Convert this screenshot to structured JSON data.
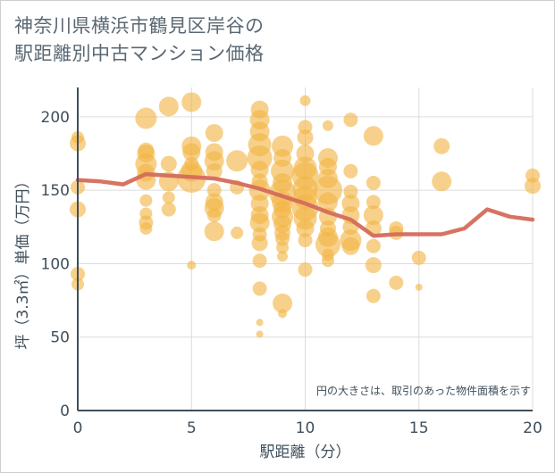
{
  "title": {
    "line1": "神奈川県横浜市鶴見区岸谷の",
    "line2": "駅距離別中古マンション価格"
  },
  "chart_data": {
    "type": "scatter",
    "xlabel": "駅距離（分）",
    "ylabel": "坪（3.3㎡）単価（万円）",
    "xlim": [
      0,
      20
    ],
    "ylim": [
      0,
      220
    ],
    "xticks": [
      0,
      5,
      10,
      15,
      20
    ],
    "yticks": [
      0,
      50,
      100,
      150,
      200
    ],
    "grid": true,
    "note": "円の大きさは、取引のあった物件面積を示す",
    "colors": {
      "bubble": "#f2b544",
      "line": "#d46b5a",
      "grid": "#dcdcdc",
      "axis": "#3f4f5b"
    },
    "line_series": {
      "x": [
        0,
        1,
        2,
        3,
        4,
        5,
        6,
        7,
        8,
        9,
        10,
        11,
        12,
        13,
        14,
        15,
        16,
        17,
        18,
        19,
        20
      ],
      "y": [
        157,
        156,
        154,
        161,
        160,
        159,
        158,
        155,
        151,
        146,
        141,
        135,
        130,
        119,
        120,
        120,
        120,
        124,
        137,
        132,
        130
      ]
    },
    "bubbles": [
      {
        "x": 0,
        "y": 186,
        "s": 7
      },
      {
        "x": 0,
        "y": 182,
        "s": 9
      },
      {
        "x": 0,
        "y": 152,
        "s": 8
      },
      {
        "x": 0,
        "y": 137,
        "s": 9
      },
      {
        "x": 0,
        "y": 93,
        "s": 8
      },
      {
        "x": 0,
        "y": 86,
        "s": 7
      },
      {
        "x": 3,
        "y": 199,
        "s": 12
      },
      {
        "x": 3,
        "y": 177,
        "s": 9
      },
      {
        "x": 3,
        "y": 175,
        "s": 10
      },
      {
        "x": 3,
        "y": 168,
        "s": 12
      },
      {
        "x": 3,
        "y": 162,
        "s": 10
      },
      {
        "x": 3,
        "y": 157,
        "s": 11
      },
      {
        "x": 3,
        "y": 143,
        "s": 7
      },
      {
        "x": 3,
        "y": 134,
        "s": 7
      },
      {
        "x": 3,
        "y": 128,
        "s": 8
      },
      {
        "x": 3,
        "y": 124,
        "s": 7
      },
      {
        "x": 4,
        "y": 207,
        "s": 11
      },
      {
        "x": 4,
        "y": 168,
        "s": 9
      },
      {
        "x": 4,
        "y": 156,
        "s": 11
      },
      {
        "x": 4,
        "y": 145,
        "s": 7
      },
      {
        "x": 4,
        "y": 137,
        "s": 8
      },
      {
        "x": 5,
        "y": 210,
        "s": 11
      },
      {
        "x": 5,
        "y": 180,
        "s": 11
      },
      {
        "x": 5,
        "y": 176,
        "s": 10
      },
      {
        "x": 5,
        "y": 168,
        "s": 8
      },
      {
        "x": 5,
        "y": 163,
        "s": 12
      },
      {
        "x": 5,
        "y": 158,
        "s": 16
      },
      {
        "x": 5,
        "y": 99,
        "s": 5
      },
      {
        "x": 6,
        "y": 189,
        "s": 10
      },
      {
        "x": 6,
        "y": 176,
        "s": 10
      },
      {
        "x": 6,
        "y": 170,
        "s": 11
      },
      {
        "x": 6,
        "y": 163,
        "s": 9
      },
      {
        "x": 6,
        "y": 150,
        "s": 8
      },
      {
        "x": 6,
        "y": 142,
        "s": 10
      },
      {
        "x": 6,
        "y": 138,
        "s": 11
      },
      {
        "x": 6,
        "y": 133,
        "s": 8
      },
      {
        "x": 6,
        "y": 122,
        "s": 11
      },
      {
        "x": 7,
        "y": 170,
        "s": 12
      },
      {
        "x": 7,
        "y": 152,
        "s": 8
      },
      {
        "x": 7,
        "y": 121,
        "s": 7
      },
      {
        "x": 8,
        "y": 205,
        "s": 10
      },
      {
        "x": 8,
        "y": 198,
        "s": 11
      },
      {
        "x": 8,
        "y": 190,
        "s": 11
      },
      {
        "x": 8,
        "y": 181,
        "s": 13
      },
      {
        "x": 8,
        "y": 172,
        "s": 14
      },
      {
        "x": 8,
        "y": 164,
        "s": 10
      },
      {
        "x": 8,
        "y": 156,
        "s": 9
      },
      {
        "x": 8,
        "y": 150,
        "s": 12
      },
      {
        "x": 8,
        "y": 141,
        "s": 10
      },
      {
        "x": 8,
        "y": 133,
        "s": 10
      },
      {
        "x": 8,
        "y": 128,
        "s": 11
      },
      {
        "x": 8,
        "y": 120,
        "s": 8
      },
      {
        "x": 8,
        "y": 114,
        "s": 9
      },
      {
        "x": 8,
        "y": 102,
        "s": 8
      },
      {
        "x": 8,
        "y": 83,
        "s": 8
      },
      {
        "x": 8,
        "y": 60,
        "s": 4
      },
      {
        "x": 8,
        "y": 52,
        "s": 4
      },
      {
        "x": 9,
        "y": 180,
        "s": 12
      },
      {
        "x": 9,
        "y": 172,
        "s": 10
      },
      {
        "x": 9,
        "y": 163,
        "s": 13
      },
      {
        "x": 9,
        "y": 155,
        "s": 11
      },
      {
        "x": 9,
        "y": 148,
        "s": 15
      },
      {
        "x": 9,
        "y": 142,
        "s": 12
      },
      {
        "x": 9,
        "y": 137,
        "s": 10
      },
      {
        "x": 9,
        "y": 132,
        "s": 12
      },
      {
        "x": 9,
        "y": 127,
        "s": 10
      },
      {
        "x": 9,
        "y": 121,
        "s": 9
      },
      {
        "x": 9,
        "y": 117,
        "s": 8
      },
      {
        "x": 9,
        "y": 111,
        "s": 7
      },
      {
        "x": 9,
        "y": 105,
        "s": 6
      },
      {
        "x": 9,
        "y": 73,
        "s": 11
      },
      {
        "x": 9,
        "y": 66,
        "s": 5
      },
      {
        "x": 10,
        "y": 211,
        "s": 6
      },
      {
        "x": 10,
        "y": 193,
        "s": 8
      },
      {
        "x": 10,
        "y": 186,
        "s": 9
      },
      {
        "x": 10,
        "y": 175,
        "s": 10
      },
      {
        "x": 10,
        "y": 165,
        "s": 13
      },
      {
        "x": 10,
        "y": 160,
        "s": 15
      },
      {
        "x": 10,
        "y": 151,
        "s": 14
      },
      {
        "x": 10,
        "y": 145,
        "s": 13
      },
      {
        "x": 10,
        "y": 138,
        "s": 15
      },
      {
        "x": 10,
        "y": 131,
        "s": 13
      },
      {
        "x": 10,
        "y": 124,
        "s": 10
      },
      {
        "x": 10,
        "y": 116,
        "s": 8
      },
      {
        "x": 10,
        "y": 96,
        "s": 8
      },
      {
        "x": 11,
        "y": 194,
        "s": 6
      },
      {
        "x": 11,
        "y": 172,
        "s": 11
      },
      {
        "x": 11,
        "y": 166,
        "s": 10
      },
      {
        "x": 11,
        "y": 158,
        "s": 11
      },
      {
        "x": 11,
        "y": 150,
        "s": 16
      },
      {
        "x": 11,
        "y": 142,
        "s": 11
      },
      {
        "x": 11,
        "y": 132,
        "s": 10
      },
      {
        "x": 11,
        "y": 124,
        "s": 9
      },
      {
        "x": 11,
        "y": 118,
        "s": 11
      },
      {
        "x": 11,
        "y": 113,
        "s": 14
      },
      {
        "x": 11,
        "y": 106,
        "s": 7
      },
      {
        "x": 11,
        "y": 102,
        "s": 7
      },
      {
        "x": 12,
        "y": 198,
        "s": 8
      },
      {
        "x": 12,
        "y": 163,
        "s": 8
      },
      {
        "x": 12,
        "y": 149,
        "s": 8
      },
      {
        "x": 12,
        "y": 141,
        "s": 10
      },
      {
        "x": 12,
        "y": 133,
        "s": 10
      },
      {
        "x": 12,
        "y": 125,
        "s": 9
      },
      {
        "x": 12,
        "y": 116,
        "s": 12
      },
      {
        "x": 12,
        "y": 112,
        "s": 10
      },
      {
        "x": 13,
        "y": 187,
        "s": 11
      },
      {
        "x": 13,
        "y": 155,
        "s": 8
      },
      {
        "x": 13,
        "y": 142,
        "s": 8
      },
      {
        "x": 13,
        "y": 133,
        "s": 11
      },
      {
        "x": 13,
        "y": 124,
        "s": 9
      },
      {
        "x": 13,
        "y": 112,
        "s": 8
      },
      {
        "x": 13,
        "y": 99,
        "s": 9
      },
      {
        "x": 13,
        "y": 78,
        "s": 8
      },
      {
        "x": 14,
        "y": 124,
        "s": 8
      },
      {
        "x": 14,
        "y": 121,
        "s": 8
      },
      {
        "x": 14,
        "y": 87,
        "s": 8
      },
      {
        "x": 15,
        "y": 104,
        "s": 8
      },
      {
        "x": 15,
        "y": 84,
        "s": 4
      },
      {
        "x": 16,
        "y": 180,
        "s": 9
      },
      {
        "x": 16,
        "y": 156,
        "s": 11
      },
      {
        "x": 20,
        "y": 160,
        "s": 8
      },
      {
        "x": 20,
        "y": 153,
        "s": 9
      }
    ]
  }
}
